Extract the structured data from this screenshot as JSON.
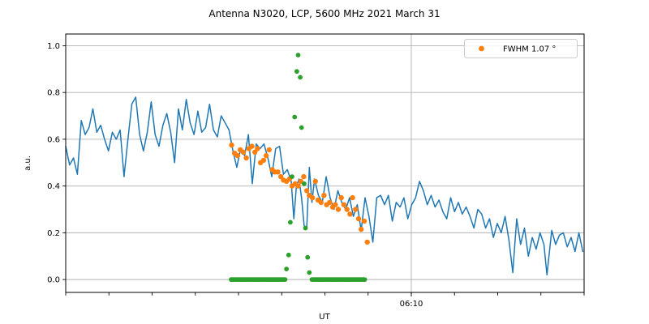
{
  "chart_data": {
    "type": "line+scatter",
    "title": "Antenna N3020, LCP, 5600 MHz 2021 March 31",
    "xlabel": "UT",
    "ylabel": "a.u.",
    "ylim": [
      -0.055,
      1.05
    ],
    "yticks": [
      0.0,
      0.2,
      0.4,
      0.6,
      0.8,
      1.0
    ],
    "grid": true,
    "grid_color": "#b0b0b0",
    "background": "#ffffff",
    "x_axis": {
      "range_minutes": [
        0,
        60
      ],
      "minor_tick_every_minutes": 5,
      "labeled_tick": {
        "minutes": 40,
        "label": "06:10"
      }
    },
    "legend": {
      "label": "FWHM 1.07 °",
      "marker": "dot",
      "marker_color": "#ff7f0e",
      "position": "upper-right"
    },
    "series": [
      {
        "name": "antenna-signal",
        "type": "line",
        "color": "#1f77b4",
        "line_width": 1.5,
        "points": [
          [
            0,
            0.57
          ],
          [
            0.45,
            0.49
          ],
          [
            0.9,
            0.52
          ],
          [
            1.35,
            0.45
          ],
          [
            1.8,
            0.68
          ],
          [
            2.25,
            0.62
          ],
          [
            2.7,
            0.65
          ],
          [
            3.15,
            0.73
          ],
          [
            3.6,
            0.63
          ],
          [
            4.05,
            0.66
          ],
          [
            4.5,
            0.6
          ],
          [
            4.95,
            0.55
          ],
          [
            5.4,
            0.63
          ],
          [
            5.85,
            0.6
          ],
          [
            6.3,
            0.64
          ],
          [
            6.75,
            0.44
          ],
          [
            7.2,
            0.6
          ],
          [
            7.65,
            0.75
          ],
          [
            8.1,
            0.78
          ],
          [
            8.55,
            0.62
          ],
          [
            9,
            0.55
          ],
          [
            9.45,
            0.63
          ],
          [
            9.9,
            0.76
          ],
          [
            10.35,
            0.62
          ],
          [
            10.8,
            0.57
          ],
          [
            11.25,
            0.66
          ],
          [
            11.7,
            0.71
          ],
          [
            12.15,
            0.63
          ],
          [
            12.6,
            0.5
          ],
          [
            13.05,
            0.73
          ],
          [
            13.5,
            0.64
          ],
          [
            13.95,
            0.77
          ],
          [
            14.4,
            0.67
          ],
          [
            14.85,
            0.62
          ],
          [
            15.3,
            0.72
          ],
          [
            15.75,
            0.63
          ],
          [
            16.2,
            0.65
          ],
          [
            16.65,
            0.75
          ],
          [
            17.1,
            0.64
          ],
          [
            17.55,
            0.61
          ],
          [
            18,
            0.7
          ],
          [
            18.45,
            0.67
          ],
          [
            18.9,
            0.64
          ],
          [
            19.35,
            0.55
          ],
          [
            19.8,
            0.48
          ],
          [
            20.25,
            0.56
          ],
          [
            20.7,
            0.53
          ],
          [
            21.15,
            0.62
          ],
          [
            21.6,
            0.41
          ],
          [
            22.05,
            0.58
          ],
          [
            22.5,
            0.56
          ],
          [
            22.95,
            0.58
          ],
          [
            23.4,
            0.52
          ],
          [
            23.85,
            0.44
          ],
          [
            24.3,
            0.56
          ],
          [
            24.75,
            0.57
          ],
          [
            25.2,
            0.45
          ],
          [
            25.65,
            0.47
          ],
          [
            26.1,
            0.42
          ],
          [
            26.4,
            0.26
          ],
          [
            26.7,
            0.4
          ],
          [
            27,
            0.43
          ],
          [
            27.3,
            0.35
          ],
          [
            27.6,
            0.23
          ],
          [
            27.9,
            0.22
          ],
          [
            28.2,
            0.48
          ],
          [
            28.5,
            0.33
          ],
          [
            28.8,
            0.43
          ],
          [
            29.25,
            0.36
          ],
          [
            29.7,
            0.33
          ],
          [
            30.15,
            0.44
          ],
          [
            30.6,
            0.35
          ],
          [
            31.05,
            0.3
          ],
          [
            31.5,
            0.38
          ],
          [
            31.95,
            0.33
          ],
          [
            32.4,
            0.3
          ],
          [
            32.85,
            0.35
          ],
          [
            33.3,
            0.27
          ],
          [
            33.75,
            0.32
          ],
          [
            34.2,
            0.21
          ],
          [
            34.65,
            0.35
          ],
          [
            35.1,
            0.27
          ],
          [
            35.55,
            0.16
          ],
          [
            36,
            0.35
          ],
          [
            36.45,
            0.36
          ],
          [
            36.9,
            0.32
          ],
          [
            37.35,
            0.36
          ],
          [
            37.8,
            0.25
          ],
          [
            38.25,
            0.33
          ],
          [
            38.7,
            0.31
          ],
          [
            39.15,
            0.35
          ],
          [
            39.6,
            0.26
          ],
          [
            40.05,
            0.32
          ],
          [
            40.5,
            0.35
          ],
          [
            40.95,
            0.42
          ],
          [
            41.4,
            0.38
          ],
          [
            41.85,
            0.32
          ],
          [
            42.3,
            0.36
          ],
          [
            42.75,
            0.31
          ],
          [
            43.2,
            0.34
          ],
          [
            43.65,
            0.29
          ],
          [
            44.1,
            0.26
          ],
          [
            44.55,
            0.35
          ],
          [
            45,
            0.29
          ],
          [
            45.45,
            0.33
          ],
          [
            45.9,
            0.28
          ],
          [
            46.35,
            0.31
          ],
          [
            46.8,
            0.27
          ],
          [
            47.25,
            0.22
          ],
          [
            47.7,
            0.3
          ],
          [
            48.15,
            0.28
          ],
          [
            48.6,
            0.22
          ],
          [
            49.05,
            0.26
          ],
          [
            49.5,
            0.18
          ],
          [
            49.95,
            0.24
          ],
          [
            50.4,
            0.2
          ],
          [
            50.85,
            0.27
          ],
          [
            51.3,
            0.17
          ],
          [
            51.75,
            0.03
          ],
          [
            52.2,
            0.26
          ],
          [
            52.65,
            0.15
          ],
          [
            53.1,
            0.22
          ],
          [
            53.55,
            0.1
          ],
          [
            54,
            0.18
          ],
          [
            54.45,
            0.13
          ],
          [
            54.9,
            0.2
          ],
          [
            55.35,
            0.15
          ],
          [
            55.7,
            0.02
          ],
          [
            56.25,
            0.21
          ],
          [
            56.7,
            0.15
          ],
          [
            57.15,
            0.19
          ],
          [
            57.6,
            0.2
          ],
          [
            58.05,
            0.14
          ],
          [
            58.5,
            0.18
          ],
          [
            58.95,
            0.12
          ],
          [
            59.4,
            0.2
          ],
          [
            59.85,
            0.12
          ]
        ]
      },
      {
        "name": "fit-samples",
        "type": "scatter",
        "color": "#ff7f0e",
        "marker_radius": 3.2,
        "points": [
          [
            19.2,
            0.575
          ],
          [
            19.55,
            0.54
          ],
          [
            19.9,
            0.53
          ],
          [
            20.2,
            0.555
          ],
          [
            20.55,
            0.545
          ],
          [
            20.9,
            0.52
          ],
          [
            21.2,
            0.56
          ],
          [
            21.55,
            0.57
          ],
          [
            21.9,
            0.545
          ],
          [
            22.2,
            0.56
          ],
          [
            22.55,
            0.5
          ],
          [
            22.9,
            0.51
          ],
          [
            23.2,
            0.53
          ],
          [
            23.55,
            0.555
          ],
          [
            23.9,
            0.47
          ],
          [
            24.2,
            0.46
          ],
          [
            24.55,
            0.46
          ],
          [
            24.9,
            0.44
          ],
          [
            25.2,
            0.425
          ],
          [
            25.55,
            0.42
          ],
          [
            25.9,
            0.43
          ],
          [
            26.2,
            0.4
          ],
          [
            26.55,
            0.41
          ],
          [
            26.9,
            0.4
          ],
          [
            27.2,
            0.42
          ],
          [
            27.55,
            0.44
          ],
          [
            27.9,
            0.38
          ],
          [
            28.2,
            0.36
          ],
          [
            28.55,
            0.35
          ],
          [
            28.9,
            0.42
          ],
          [
            29.2,
            0.34
          ],
          [
            29.55,
            0.33
          ],
          [
            29.9,
            0.36
          ],
          [
            30.2,
            0.32
          ],
          [
            30.55,
            0.33
          ],
          [
            30.9,
            0.31
          ],
          [
            31.2,
            0.32
          ],
          [
            31.55,
            0.3
          ],
          [
            31.9,
            0.35
          ],
          [
            32.2,
            0.32
          ],
          [
            32.55,
            0.3
          ],
          [
            32.9,
            0.28
          ],
          [
            33.2,
            0.35
          ],
          [
            33.55,
            0.3
          ],
          [
            33.9,
            0.26
          ],
          [
            34.2,
            0.215
          ],
          [
            34.55,
            0.25
          ],
          [
            34.9,
            0.16
          ]
        ]
      },
      {
        "name": "drift-scan",
        "type": "scatter",
        "color": "#2ca02c",
        "marker_radius": 2.9,
        "baseline": {
          "value": 0.0,
          "segments_minutes": [
            [
              19.15,
              25.45
            ],
            [
              28.5,
              34.65
            ]
          ],
          "dot_spacing_minutes": 0.13
        },
        "points": [
          [
            25.55,
            0.045
          ],
          [
            25.8,
            0.105
          ],
          [
            26.0,
            0.245
          ],
          [
            26.2,
            0.44
          ],
          [
            26.5,
            0.695
          ],
          [
            26.75,
            0.89
          ],
          [
            26.9,
            0.96
          ],
          [
            27.15,
            0.865
          ],
          [
            27.3,
            0.65
          ],
          [
            27.6,
            0.41
          ],
          [
            27.75,
            0.22
          ],
          [
            28.0,
            0.095
          ],
          [
            28.2,
            0.03
          ]
        ]
      }
    ]
  }
}
